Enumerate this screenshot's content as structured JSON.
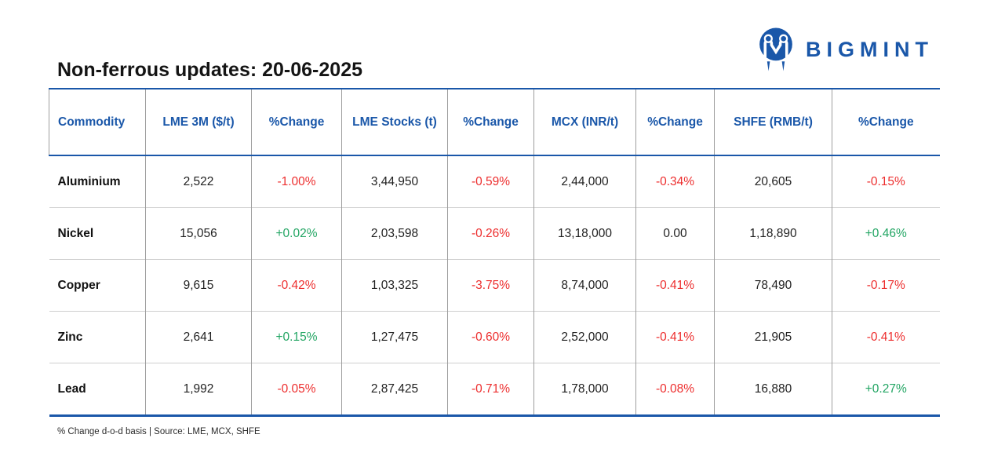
{
  "brand": {
    "wordmark": "BIGMINT"
  },
  "colors": {
    "accent": "#1a57a9",
    "negative": "#ed2e2e",
    "positive": "#22a563"
  },
  "chart_data": {
    "type": "table",
    "title": "Non-ferrous updates: 20-06-2025",
    "columns": [
      "Commodity",
      "LME 3M ($/t)",
      "%Change",
      "LME Stocks (t)",
      "%Change",
      "MCX (INR/t)",
      "%Change",
      "SHFE (RMB/t)",
      "%Change"
    ],
    "rows": [
      {
        "commodity": "Aluminium",
        "cells": [
          {
            "text": "2,522",
            "kind": "value"
          },
          {
            "text": "-1.00%",
            "kind": "negative"
          },
          {
            "text": "3,44,950",
            "kind": "value"
          },
          {
            "text": "-0.59%",
            "kind": "negative"
          },
          {
            "text": "2,44,000",
            "kind": "value"
          },
          {
            "text": "-0.34%",
            "kind": "negative"
          },
          {
            "text": "20,605",
            "kind": "value"
          },
          {
            "text": "-0.15%",
            "kind": "negative"
          }
        ]
      },
      {
        "commodity": "Nickel",
        "cells": [
          {
            "text": "15,056",
            "kind": "value"
          },
          {
            "text": "+0.02%",
            "kind": "positive"
          },
          {
            "text": "2,03,598",
            "kind": "value"
          },
          {
            "text": "-0.26%",
            "kind": "negative"
          },
          {
            "text": "13,18,000",
            "kind": "value"
          },
          {
            "text": "0.00",
            "kind": "neutral"
          },
          {
            "text": "1,18,890",
            "kind": "value"
          },
          {
            "text": "+0.46%",
            "kind": "positive"
          }
        ]
      },
      {
        "commodity": "Copper",
        "cells": [
          {
            "text": "9,615",
            "kind": "value"
          },
          {
            "text": "-0.42%",
            "kind": "negative"
          },
          {
            "text": "1,03,325",
            "kind": "value"
          },
          {
            "text": "-3.75%",
            "kind": "negative"
          },
          {
            "text": "8,74,000",
            "kind": "value"
          },
          {
            "text": "-0.41%",
            "kind": "negative"
          },
          {
            "text": "78,490",
            "kind": "value"
          },
          {
            "text": "-0.17%",
            "kind": "negative"
          }
        ]
      },
      {
        "commodity": "Zinc",
        "cells": [
          {
            "text": "2,641",
            "kind": "value"
          },
          {
            "text": "+0.15%",
            "kind": "positive"
          },
          {
            "text": "1,27,475",
            "kind": "value"
          },
          {
            "text": "-0.60%",
            "kind": "negative"
          },
          {
            "text": "2,52,000",
            "kind": "value"
          },
          {
            "text": "-0.41%",
            "kind": "negative"
          },
          {
            "text": "21,905",
            "kind": "value"
          },
          {
            "text": "-0.41%",
            "kind": "negative"
          }
        ]
      },
      {
        "commodity": "Lead",
        "cells": [
          {
            "text": "1,992",
            "kind": "value"
          },
          {
            "text": "-0.05%",
            "kind": "negative"
          },
          {
            "text": "2,87,425",
            "kind": "value"
          },
          {
            "text": "-0.71%",
            "kind": "negative"
          },
          {
            "text": "1,78,000",
            "kind": "value"
          },
          {
            "text": "-0.08%",
            "kind": "negative"
          },
          {
            "text": "16,880",
            "kind": "value"
          },
          {
            "text": "+0.27%",
            "kind": "positive"
          }
        ]
      }
    ],
    "footnote": "% Change d-o-d basis | Source: LME, MCX, SHFE"
  }
}
